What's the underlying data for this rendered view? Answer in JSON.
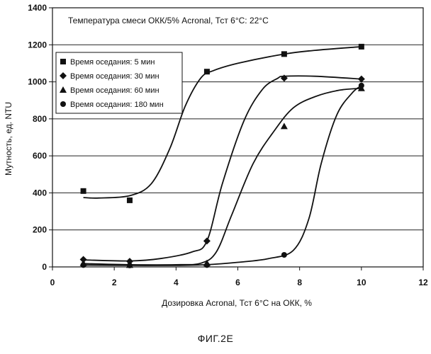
{
  "chart_data": {
    "type": "scatter",
    "title": "",
    "annotation": "Температура смеси ОКК/5% Acronal, Тст 6°C: 22°C",
    "xlabel": "Дозировка Acronal, Тст 6°C на ОКК, %",
    "ylabel": "Мутность, ед. NTU",
    "xlim": [
      0,
      12
    ],
    "ylim": [
      0,
      1400
    ],
    "xticks": [
      "0",
      "2",
      "4",
      "6",
      "8",
      "10",
      "12"
    ],
    "yticks": [
      "0",
      "200",
      "400",
      "600",
      "800",
      "1000",
      "1200",
      "1400"
    ],
    "grid": "horizontal",
    "legend_position": "top-left",
    "series": [
      {
        "name": "Время оседания: 5 мин",
        "marker": "square",
        "x": [
          1,
          2.5,
          5,
          7.5,
          10
        ],
        "y": [
          410,
          360,
          1055,
          1150,
          1190
        ],
        "curve": [
          [
            1,
            375
          ],
          [
            1.5,
            372
          ],
          [
            2.5,
            385
          ],
          [
            3.2,
            450
          ],
          [
            3.8,
            640
          ],
          [
            4.3,
            870
          ],
          [
            4.8,
            1020
          ],
          [
            5.2,
            1060
          ],
          [
            6,
            1100
          ],
          [
            7.5,
            1150
          ],
          [
            8.5,
            1170
          ],
          [
            10,
            1190
          ]
        ]
      },
      {
        "name": "Время оседания: 30 мин",
        "marker": "diamond",
        "x": [
          1,
          2.5,
          5,
          7.5,
          10
        ],
        "y": [
          40,
          30,
          140,
          1020,
          1015
        ],
        "curve": [
          [
            1,
            38
          ],
          [
            2.5,
            32
          ],
          [
            3.5,
            45
          ],
          [
            4.5,
            80
          ],
          [
            5,
            140
          ],
          [
            5.5,
            450
          ],
          [
            6.2,
            790
          ],
          [
            6.8,
            960
          ],
          [
            7.3,
            1020
          ],
          [
            7.5,
            1030
          ],
          [
            8.5,
            1030
          ],
          [
            10,
            1015
          ]
        ]
      },
      {
        "name": "Время оседания: 60 мин",
        "marker": "triangle",
        "x": [
          1,
          2.5,
          5,
          7.5,
          10
        ],
        "y": [
          20,
          10,
          20,
          760,
          965
        ],
        "curve": [
          [
            1,
            18
          ],
          [
            2.5,
            12
          ],
          [
            4,
            12
          ],
          [
            4.8,
            20
          ],
          [
            5.3,
            80
          ],
          [
            5.8,
            280
          ],
          [
            6.5,
            560
          ],
          [
            7.2,
            740
          ],
          [
            7.8,
            860
          ],
          [
            8.5,
            920
          ],
          [
            9.3,
            955
          ],
          [
            10,
            965
          ]
        ]
      },
      {
        "name": "Время оседания: 180 мин",
        "marker": "circle",
        "x": [
          1,
          2.5,
          5,
          7.5,
          10
        ],
        "y": [
          10,
          8,
          10,
          65,
          980
        ],
        "curve": [
          [
            1,
            10
          ],
          [
            2.5,
            8
          ],
          [
            4,
            8
          ],
          [
            5,
            12
          ],
          [
            6,
            25
          ],
          [
            7,
            45
          ],
          [
            7.8,
            90
          ],
          [
            8.3,
            260
          ],
          [
            8.7,
            560
          ],
          [
            9.2,
            820
          ],
          [
            9.7,
            940
          ],
          [
            10,
            980
          ]
        ]
      }
    ]
  },
  "figure_caption": "ФИГ.2Е"
}
